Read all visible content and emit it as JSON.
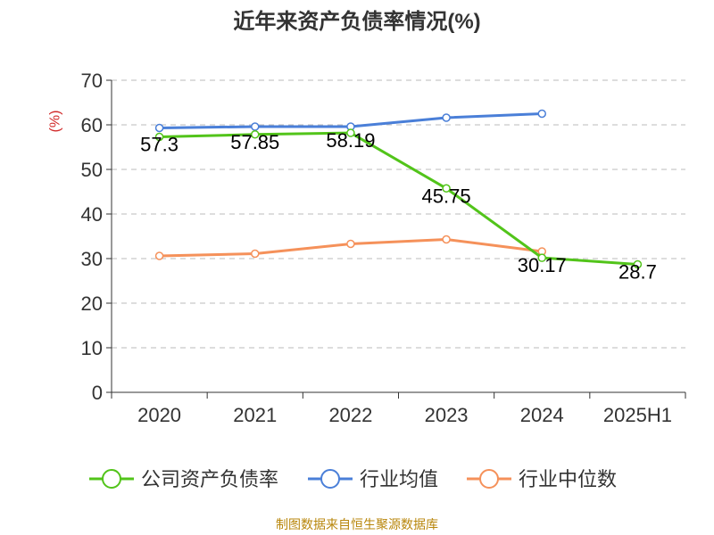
{
  "title": "近年来资产负债率情况(%)",
  "y_unit": "(%)",
  "source": "制图数据来自恒生聚源数据库",
  "chart_data": {
    "type": "line",
    "title": "近年来资产负债率情况(%)",
    "xlabel": "",
    "ylabel": "(%)",
    "categories": [
      "2020",
      "2021",
      "2022",
      "2023",
      "2024",
      "2025H1"
    ],
    "ylim": [
      0,
      70
    ],
    "yticks": [
      0,
      10,
      20,
      30,
      40,
      50,
      60,
      70
    ],
    "grid": true,
    "legend_position": "bottom",
    "series": [
      {
        "name": "公司资产负债率",
        "color": "#52c41a",
        "values": [
          57.3,
          57.85,
          58.19,
          45.75,
          30.17,
          28.7
        ],
        "labels": [
          "57.3",
          "57.85",
          "58.19",
          "45.75",
          "30.17",
          "28.7"
        ]
      },
      {
        "name": "行业均值",
        "color": "#4a7fd8",
        "values": [
          59.3,
          59.6,
          59.6,
          61.6,
          62.5,
          null
        ]
      },
      {
        "name": "行业中位数",
        "color": "#f5915a",
        "values": [
          30.6,
          31.1,
          33.3,
          34.3,
          31.6,
          null
        ]
      }
    ]
  }
}
